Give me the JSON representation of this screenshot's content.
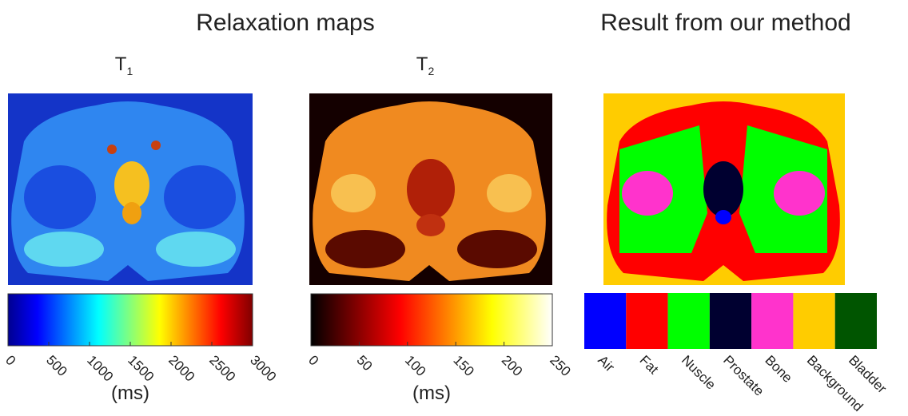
{
  "header": {
    "left_title": "Relaxation maps",
    "right_title": "Result from our method"
  },
  "panels": [
    {
      "label": {
        "symbol": "T",
        "subscript": "1"
      },
      "colormap": "jet",
      "ticks": [
        "0",
        "500",
        "1000",
        "1500",
        "2000",
        "2500",
        "3000"
      ],
      "unit": "(ms)"
    },
    {
      "label": {
        "symbol": "T",
        "subscript": "2"
      },
      "colormap": "hot",
      "ticks": [
        "0",
        "50",
        "100",
        "150",
        "200",
        "250"
      ],
      "unit": "(ms)"
    }
  ],
  "classes": [
    {
      "name": "Air",
      "color": "#0000ff"
    },
    {
      "name": "Fat",
      "color": "#ff0000"
    },
    {
      "name": "Nuscle",
      "color": "#00ff00"
    },
    {
      "name": "Prostate",
      "color": "#000030"
    },
    {
      "name": "Bone",
      "color": "#ff33cc"
    },
    {
      "name": "Background",
      "color": "#ffcc00"
    },
    {
      "name": "Bladder",
      "color": "#005500"
    }
  ]
}
